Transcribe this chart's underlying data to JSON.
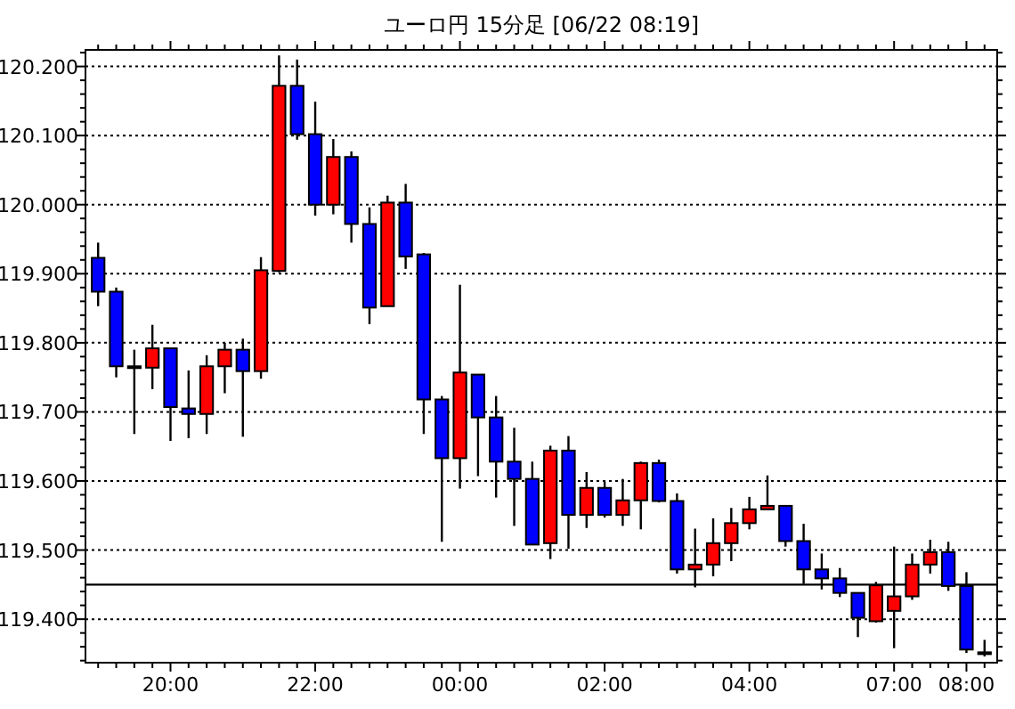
{
  "chart_data": {
    "type": "candlestick",
    "title": "ユーロ円 15分足 [06/22 08:19]",
    "categories": [
      null,
      null,
      null,
      null,
      "20:00",
      null,
      null,
      null,
      null,
      null,
      null,
      null,
      "22:00",
      null,
      null,
      null,
      null,
      null,
      null,
      null,
      "00:00",
      null,
      null,
      null,
      null,
      null,
      null,
      null,
      "02:00",
      null,
      null,
      null,
      null,
      null,
      null,
      null,
      "04:00",
      null,
      null,
      null,
      null,
      null,
      null,
      null,
      "07:00",
      null,
      null,
      null,
      "08:00",
      null
    ],
    "ohlc": [
      [
        119.923,
        119.945,
        119.853,
        119.874
      ],
      [
        119.874,
        119.88,
        119.75,
        119.766
      ],
      [
        119.766,
        119.79,
        119.668,
        119.766
      ],
      [
        119.764,
        119.826,
        119.733,
        119.792
      ],
      [
        119.792,
        119.792,
        119.658,
        119.707
      ],
      [
        119.705,
        119.76,
        119.662,
        119.697
      ],
      [
        119.697,
        119.782,
        119.668,
        119.766
      ],
      [
        119.766,
        119.8,
        119.727,
        119.79
      ],
      [
        119.79,
        119.806,
        119.664,
        119.759
      ],
      [
        119.759,
        119.924,
        119.748,
        119.905
      ],
      [
        119.904,
        120.216,
        119.902,
        120.172
      ],
      [
        120.172,
        120.21,
        120.094,
        120.102
      ],
      [
        120.102,
        120.149,
        119.984,
        120.0
      ],
      [
        120.0,
        120.095,
        119.986,
        120.069
      ],
      [
        120.069,
        120.077,
        119.945,
        119.972
      ],
      [
        119.972,
        119.996,
        119.827,
        119.851
      ],
      [
        119.853,
        120.013,
        119.853,
        120.003
      ],
      [
        120.003,
        120.03,
        119.907,
        119.925
      ],
      [
        119.928,
        119.93,
        119.668,
        119.718
      ],
      [
        119.718,
        119.723,
        119.512,
        119.633
      ],
      [
        119.633,
        119.884,
        119.589,
        119.757
      ],
      [
        119.754,
        119.754,
        119.607,
        119.692
      ],
      [
        119.692,
        119.723,
        119.576,
        119.628
      ],
      [
        119.628,
        119.677,
        119.535,
        119.603
      ],
      [
        119.603,
        119.628,
        119.508,
        119.508
      ],
      [
        119.51,
        119.651,
        119.487,
        119.644
      ],
      [
        119.644,
        119.665,
        119.502,
        119.551
      ],
      [
        119.551,
        119.613,
        119.532,
        119.59
      ],
      [
        119.59,
        119.599,
        119.547,
        119.551
      ],
      [
        119.551,
        119.603,
        119.535,
        119.572
      ],
      [
        119.572,
        119.628,
        119.53,
        119.626
      ],
      [
        119.626,
        119.631,
        119.569,
        119.571
      ],
      [
        119.571,
        119.582,
        119.466,
        119.472
      ],
      [
        119.472,
        119.531,
        119.446,
        119.479
      ],
      [
        119.479,
        119.546,
        119.462,
        119.51
      ],
      [
        119.51,
        119.561,
        119.484,
        119.539
      ],
      [
        119.539,
        119.577,
        119.53,
        119.559
      ],
      [
        119.559,
        119.608,
        119.559,
        119.564
      ],
      [
        119.564,
        119.564,
        119.505,
        119.513
      ],
      [
        119.513,
        119.538,
        119.451,
        119.472
      ],
      [
        119.472,
        119.495,
        119.443,
        119.459
      ],
      [
        119.459,
        119.474,
        119.432,
        119.438
      ],
      [
        119.438,
        119.438,
        119.374,
        119.402
      ],
      [
        119.397,
        119.454,
        119.395,
        119.449
      ],
      [
        119.412,
        119.505,
        119.358,
        119.433
      ],
      [
        119.433,
        119.495,
        119.428,
        119.479
      ],
      [
        119.479,
        119.515,
        119.466,
        119.497
      ],
      [
        119.497,
        119.512,
        119.441,
        119.448
      ],
      [
        119.448,
        119.468,
        119.351,
        119.356
      ],
      [
        119.352,
        119.37,
        119.346,
        119.352
      ]
    ],
    "colors": [
      "#0000ff",
      "#0000ff",
      "#0000ff",
      "#ff0000",
      "#0000ff",
      "#0000ff",
      "#ff0000",
      "#ff0000",
      "#0000ff",
      "#ff0000",
      "#ff0000",
      "#0000ff",
      "#0000ff",
      "#ff0000",
      "#0000ff",
      "#0000ff",
      "#ff0000",
      "#0000ff",
      "#0000ff",
      "#0000ff",
      "#ff0000",
      "#0000ff",
      "#0000ff",
      "#0000ff",
      "#0000ff",
      "#ff0000",
      "#0000ff",
      "#ff0000",
      "#0000ff",
      "#ff0000",
      "#ff0000",
      "#0000ff",
      "#0000ff",
      "#ff0000",
      "#ff0000",
      "#ff0000",
      "#ff0000",
      "#ff0000",
      "#0000ff",
      "#0000ff",
      "#0000ff",
      "#0000ff",
      "#0000ff",
      "#ff0000",
      "#ff0000",
      "#ff0000",
      "#ff0000",
      "#0000ff",
      "#0000ff",
      "#0000ff"
    ],
    "ylim": [
      119.337,
      120.224
    ],
    "yticks": [
      {
        "value": 119.34,
        "label": null
      },
      {
        "value": 119.36,
        "label": null
      },
      {
        "value": 119.38,
        "label": null
      },
      {
        "value": 119.4,
        "label": "119.400"
      },
      {
        "value": 119.42,
        "label": null
      },
      {
        "value": 119.44,
        "label": null
      },
      {
        "value": 119.46,
        "label": null
      },
      {
        "value": 119.48,
        "label": null
      },
      {
        "value": 119.5,
        "label": "119.500"
      },
      {
        "value": 119.52,
        "label": null
      },
      {
        "value": 119.54,
        "label": null
      },
      {
        "value": 119.56,
        "label": null
      },
      {
        "value": 119.58,
        "label": null
      },
      {
        "value": 119.6,
        "label": "119.600"
      },
      {
        "value": 119.62,
        "label": null
      },
      {
        "value": 119.64,
        "label": null
      },
      {
        "value": 119.66,
        "label": null
      },
      {
        "value": 119.68,
        "label": null
      },
      {
        "value": 119.7,
        "label": "119.700"
      },
      {
        "value": 119.72,
        "label": null
      },
      {
        "value": 119.74,
        "label": null
      },
      {
        "value": 119.76,
        "label": null
      },
      {
        "value": 119.78,
        "label": null
      },
      {
        "value": 119.8,
        "label": "119.800"
      },
      {
        "value": 119.82,
        "label": null
      },
      {
        "value": 119.84,
        "label": null
      },
      {
        "value": 119.86,
        "label": null
      },
      {
        "value": 119.88,
        "label": null
      },
      {
        "value": 119.9,
        "label": "119.900"
      },
      {
        "value": 119.92,
        "label": null
      },
      {
        "value": 119.94,
        "label": null
      },
      {
        "value": 119.96,
        "label": null
      },
      {
        "value": 119.98,
        "label": null
      },
      {
        "value": 120.0,
        "label": "120.000"
      },
      {
        "value": 120.02,
        "label": null
      },
      {
        "value": 120.04,
        "label": null
      },
      {
        "value": 120.06,
        "label": null
      },
      {
        "value": 120.08,
        "label": null
      },
      {
        "value": 120.1,
        "label": "120.100"
      },
      {
        "value": 120.12,
        "label": null
      },
      {
        "value": 120.14,
        "label": null
      },
      {
        "value": 120.16,
        "label": null
      },
      {
        "value": 120.18,
        "label": null
      },
      {
        "value": 120.2,
        "label": "120.200"
      },
      {
        "value": 120.22,
        "label": null
      }
    ],
    "grid": "y",
    "ref_lines": [
      {
        "axis": "y",
        "value": 119.45,
        "color": "#000000"
      }
    ]
  }
}
